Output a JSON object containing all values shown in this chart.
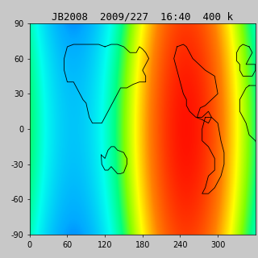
{
  "title": "JB2008  2009/227  16:40  400 k",
  "title_fontsize": 9,
  "xlim": [
    0,
    360
  ],
  "ylim": [
    -90,
    90
  ],
  "xticks": [
    0,
    60,
    120,
    180,
    240,
    300
  ],
  "yticks": [
    -90,
    -60,
    -30,
    0,
    30,
    60,
    90
  ],
  "tick_fontsize": 7,
  "solar_noon_lon": 250.0,
  "bg_color": "#c8c8c8",
  "colormap_nodes": [
    [
      0.0,
      "#00008B"
    ],
    [
      0.15,
      "#0000FF"
    ],
    [
      0.28,
      "#00AAFF"
    ],
    [
      0.42,
      "#00FFEE"
    ],
    [
      0.52,
      "#00FF80"
    ],
    [
      0.6,
      "#80FF00"
    ],
    [
      0.7,
      "#FFFF00"
    ],
    [
      0.82,
      "#FF8000"
    ],
    [
      1.0,
      "#FF0000"
    ]
  ]
}
